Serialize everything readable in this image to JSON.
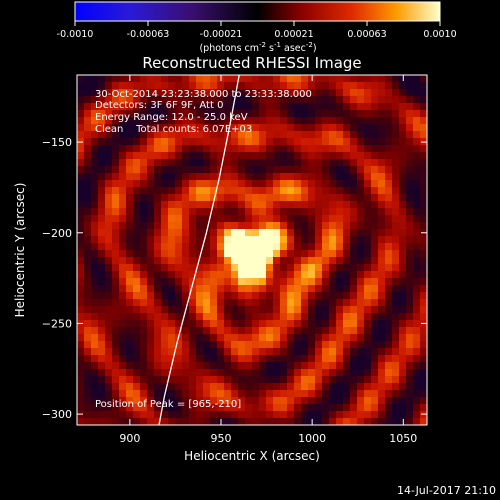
{
  "chart_data": {
    "type": "heatmap",
    "title": "Reconstructed RHESSI Image",
    "xlabel": "Heliocentric X (arcsec)",
    "ylabel": "Heliocentric Y (arcsec)",
    "xlim": [
      871,
      1063
    ],
    "ylim": [
      -306,
      -113
    ],
    "xticks": [
      900,
      950,
      1000,
      1050
    ],
    "yticks": [
      -150,
      -200,
      -250,
      -300
    ],
    "colorbar": {
      "min": -0.001,
      "max": 0.001,
      "ticks": [
        "-0.0010",
        "-0.00063",
        "-0.00021",
        "0.00021",
        "0.00063",
        "0.0010"
      ],
      "unit_text": "(photons cm",
      "unit_sup1": "-2",
      "unit_mid": " s",
      "unit_sup2": "-1",
      "unit_mid2": " asec",
      "unit_sup3": "-2",
      "unit_end": ")"
    },
    "annotations": {
      "time": "30-Oct-2014 23:23:38.000 to 23:33:38.000",
      "detectors": "Detectors: 3F 6F 9F, Att 0",
      "energy": "Energy Range: 12.0 - 25.0 keV",
      "clean": "Clean    Total counts: 6.07E+03",
      "peak": "Position of Peak = [965,-210]"
    },
    "peak": {
      "x": 965,
      "y": -210
    },
    "limb_points": [
      [
        960,
        -113
      ],
      [
        955,
        -140
      ],
      [
        949,
        -170
      ],
      [
        942,
        -200
      ],
      [
        934,
        -230
      ],
      [
        926,
        -260
      ],
      [
        919,
        -290
      ],
      [
        916,
        -306
      ]
    ],
    "timestamp": "14-Jul-2017 21:10"
  }
}
